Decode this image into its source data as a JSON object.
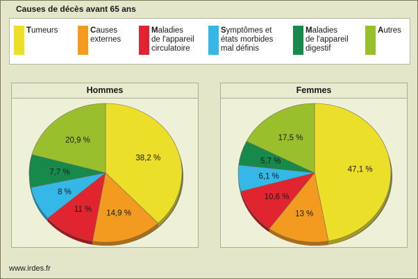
{
  "title": "Causes de décès avant 65 ans",
  "footer": "www.irdes.fr",
  "legend": [
    {
      "first": "T",
      "rest": "umeurs",
      "color": "#ecdf2a"
    },
    {
      "first": "C",
      "rest": "auses\nexternes",
      "color": "#f39b20"
    },
    {
      "first": "M",
      "rest": "aladies\nde l'appareil\ncirculatoire",
      "color": "#e02430"
    },
    {
      "first": "S",
      "rest": "ymptômes et\nétats morbides\nmal définis",
      "color": "#35b7e8"
    },
    {
      "first": "M",
      "rest": "aladies\nde l'appareil\ndigestif",
      "color": "#17894a"
    },
    {
      "first": "A",
      "rest": "utres",
      "color": "#9abf2c"
    }
  ],
  "chart_data": [
    {
      "type": "pie",
      "title": "Hommes",
      "categories": [
        "Tumeurs",
        "Causes externes",
        "Maladies de l'appareil circulatoire",
        "Symptômes et états morbides mal définis",
        "Maladies de l'appareil digestif",
        "Autres"
      ],
      "values": [
        38.2,
        14.9,
        11,
        8,
        7.7,
        20.9
      ],
      "labels": [
        "38,2 %",
        "14,9 %",
        "11 %",
        "8 %",
        "7,7 %",
        "20,9 %"
      ],
      "colors": [
        "#ecdf2a",
        "#f39b20",
        "#e02430",
        "#35b7e8",
        "#17894a",
        "#9abf2c"
      ]
    },
    {
      "type": "pie",
      "title": "Femmes",
      "categories": [
        "Tumeurs",
        "Causes externes",
        "Maladies de l'appareil circulatoire",
        "Symptômes et états morbides mal définis",
        "Maladies de l'appareil digestif",
        "Autres"
      ],
      "values": [
        47.1,
        13,
        10.6,
        6.1,
        5.7,
        17.5
      ],
      "labels": [
        "47,1 %",
        "13 %",
        "10,6 %",
        "6,1 %",
        "5,7 %",
        "17,5 %"
      ],
      "colors": [
        "#ecdf2a",
        "#f39b20",
        "#e02430",
        "#35b7e8",
        "#17894a",
        "#9abf2c"
      ]
    }
  ]
}
